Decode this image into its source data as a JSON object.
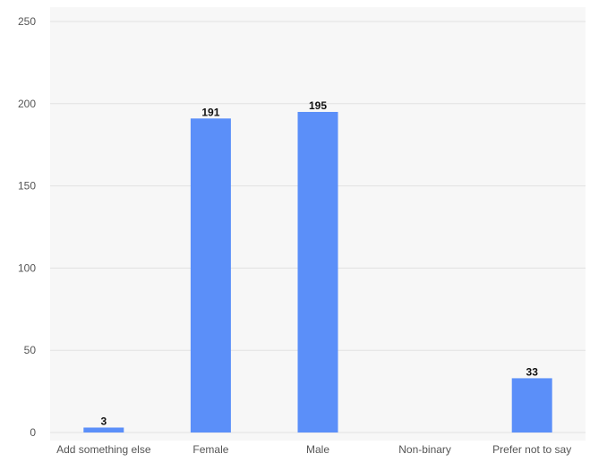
{
  "chart_data": {
    "type": "bar",
    "categories": [
      "Add something else",
      "Female",
      "Male",
      "Non-binary",
      "Prefer not to say"
    ],
    "values": [
      3,
      191,
      195,
      0,
      33
    ],
    "data_labels": [
      "3",
      "191",
      "195",
      "",
      "33"
    ],
    "title": "",
    "xlabel": "",
    "ylabel": "",
    "ylim": [
      0,
      250
    ],
    "yticks": [
      0,
      50,
      100,
      150,
      200,
      250
    ],
    "grid": true,
    "legend": "none",
    "colors": {
      "bar": "#5b8ff9",
      "plot_background": "#f7f7f7",
      "grid": "#e2e2e2"
    }
  }
}
